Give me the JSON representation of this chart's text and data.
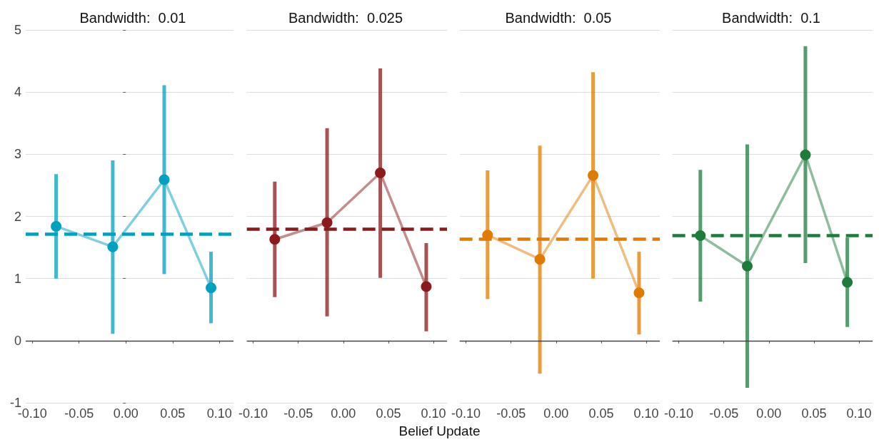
{
  "chart_data": [
    {
      "type": "line",
      "title": "Bandwidth:  0.01",
      "x": [
        -0.0745,
        -0.014,
        0.041,
        0.091
      ],
      "series": [
        {
          "color": "#00a0c0",
          "values": [
            1.84,
            1.51,
            2.59,
            0.85
          ],
          "errors": [
            [
              1.0,
              2.68
            ],
            [
              0.11,
              2.9
            ],
            [
              1.07,
              4.11
            ],
            [
              0.28,
              1.43
            ]
          ]
        }
      ],
      "xlim": [
        -0.107,
        0.115
      ],
      "xticks": [
        {
          "value": -0.1,
          "label": "-0.10"
        },
        {
          "value": -0.05,
          "label": "-0.05"
        },
        {
          "value": 0,
          "label": "0.00"
        },
        {
          "value": 0.05,
          "label": "0.05"
        },
        {
          "value": 0.1,
          "label": "0.10"
        }
      ],
      "ylim": [
        -1,
        5
      ],
      "yticks": [
        -1,
        0,
        1,
        2,
        3,
        4,
        5
      ],
      "grid": "y",
      "marker": "circle",
      "ref_lines": [
        {
          "axis": "y",
          "value": 1.72,
          "color": "#00a0c0",
          "line_style": "dashed"
        },
        {
          "axis": "y",
          "value": 0,
          "color": "#444444",
          "line_style": "solid"
        }
      ]
    },
    {
      "type": "line",
      "title": "Bandwidth:  0.025",
      "xlabel": "Belief Update",
      "x": [
        -0.076,
        -0.018,
        0.041,
        0.092
      ],
      "series": [
        {
          "color": "#8b1a1a",
          "values": [
            1.63,
            1.9,
            2.7,
            0.87
          ],
          "errors": [
            [
              0.7,
              2.56
            ],
            [
              0.39,
              3.42
            ],
            [
              1.01,
              4.38
            ],
            [
              0.15,
              1.57
            ]
          ]
        }
      ],
      "xlim": [
        -0.107,
        0.115
      ],
      "xticks": [
        {
          "value": -0.1,
          "label": "-0.10"
        },
        {
          "value": -0.05,
          "label": "-0.05"
        },
        {
          "value": 0,
          "label": "0.00"
        },
        {
          "value": 0.05,
          "label": "0.05"
        },
        {
          "value": 0.1,
          "label": "0.10"
        }
      ],
      "ylim": [
        -1,
        5
      ],
      "yticks": [
        -1,
        0,
        1,
        2,
        3,
        4,
        5
      ],
      "grid": "y",
      "marker": "circle",
      "tick_labels": "x",
      "ref_lines": [
        {
          "axis": "y",
          "value": 1.8,
          "color": "#8b1a1a",
          "line_style": "dashed"
        },
        {
          "axis": "y",
          "value": 0,
          "color": "#444444",
          "line_style": "solid"
        }
      ]
    },
    {
      "type": "line",
      "title": "Bandwidth:  0.05",
      "x": [
        -0.076,
        -0.018,
        0.041,
        0.092
      ],
      "series": [
        {
          "color": "#e07b00",
          "values": [
            1.7,
            1.31,
            2.66,
            0.77
          ],
          "errors": [
            [
              0.67,
              2.74
            ],
            [
              -0.53,
              3.14
            ],
            [
              1.0,
              4.32
            ],
            [
              0.1,
              1.43
            ]
          ]
        }
      ],
      "xlim": [
        -0.107,
        0.115
      ],
      "xticks": [
        {
          "value": -0.1,
          "label": "-0.10"
        },
        {
          "value": -0.05,
          "label": "-0.05"
        },
        {
          "value": 0,
          "label": "0.00"
        },
        {
          "value": 0.05,
          "label": "0.05"
        },
        {
          "value": 0.1,
          "label": "0.10"
        }
      ],
      "ylim": [
        -1,
        5
      ],
      "yticks": [
        -1,
        0,
        1,
        2,
        3,
        4,
        5
      ],
      "grid": "y",
      "marker": "circle",
      "tick_labels": "x",
      "ref_lines": [
        {
          "axis": "y",
          "value": 1.64,
          "color": "#e07b00",
          "line_style": "dashed"
        },
        {
          "axis": "y",
          "value": 0,
          "color": "#444444",
          "line_style": "solid"
        }
      ]
    },
    {
      "type": "line",
      "title": "Bandwidth:  0.1",
      "x": [
        -0.076,
        -0.024,
        0.0405,
        0.087
      ],
      "series": [
        {
          "color": "#1e7b3c",
          "values": [
            1.69,
            1.2,
            2.99,
            0.94
          ],
          "errors": [
            [
              0.63,
              2.75
            ],
            [
              -0.76,
              3.16
            ],
            [
              1.25,
              4.74
            ],
            [
              0.22,
              1.66
            ]
          ]
        }
      ],
      "xlim": [
        -0.107,
        0.115
      ],
      "xticks": [
        {
          "value": -0.1,
          "label": "-0.10"
        },
        {
          "value": -0.05,
          "label": "-0.05"
        },
        {
          "value": 0,
          "label": "0.00"
        },
        {
          "value": 0.05,
          "label": "0.05"
        },
        {
          "value": 0.1,
          "label": "0.10"
        }
      ],
      "ylim": [
        -1,
        5
      ],
      "yticks": [
        -1,
        0,
        1,
        2,
        3,
        4,
        5
      ],
      "grid": "y",
      "marker": "circle",
      "tick_labels": "x",
      "ref_lines": [
        {
          "axis": "y",
          "value": 1.69,
          "color": "#1e7b3c",
          "line_style": "dashed"
        },
        {
          "axis": "y",
          "value": 0,
          "color": "#444444",
          "line_style": "solid"
        }
      ]
    }
  ]
}
